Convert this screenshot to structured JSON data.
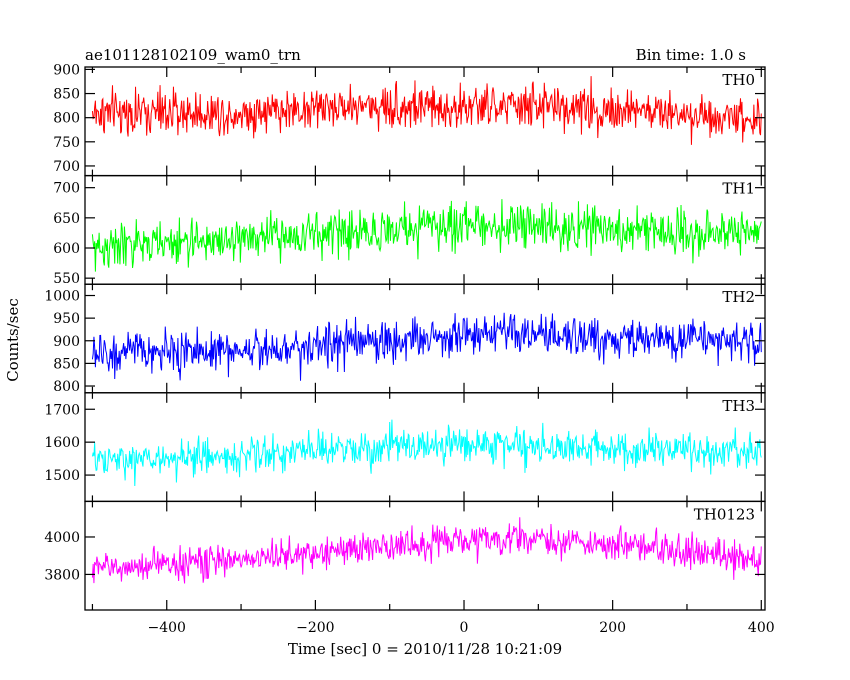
{
  "chart_data": {
    "type": "line",
    "title": "ae101128102109_wam0_trn",
    "bin_time_label": "Bin time: 1.0 s",
    "xlabel": "Time [sec] 0 = 2010/11/28 10:21:09",
    "ylabel": "Counts/sec",
    "xlim": [
      -510,
      405
    ],
    "x_ticks": [
      -400,
      -200,
      0,
      200,
      400
    ],
    "x_tick_labels": [
      "−400",
      "−200",
      "0",
      "200",
      "400"
    ],
    "x_range_data": [
      -500,
      400
    ],
    "panels": [
      {
        "name": "TH0",
        "color": "#ff0000",
        "ylim": [
          680,
          905
        ],
        "y_ticks": [
          700,
          750,
          800,
          850,
          900
        ],
        "y_tick_labels": [
          "700",
          "750",
          "800",
          "850",
          "900"
        ],
        "mean_profile": [
          {
            "x": -500,
            "y": 810
          },
          {
            "x": -300,
            "y": 810
          },
          {
            "x": -150,
            "y": 825
          },
          {
            "x": 0,
            "y": 820
          },
          {
            "x": 100,
            "y": 825
          },
          {
            "x": 250,
            "y": 812
          },
          {
            "x": 400,
            "y": 800
          }
        ],
        "spread": 38
      },
      {
        "name": "TH1",
        "color": "#00ff00",
        "ylim": [
          540,
          720
        ],
        "y_ticks": [
          550,
          600,
          650,
          700
        ],
        "y_tick_labels": [
          "550",
          "600",
          "650",
          "700"
        ],
        "mean_profile": [
          {
            "x": -500,
            "y": 600
          },
          {
            "x": -300,
            "y": 615
          },
          {
            "x": -100,
            "y": 630
          },
          {
            "x": 0,
            "y": 640
          },
          {
            "x": 200,
            "y": 630
          },
          {
            "x": 400,
            "y": 625
          }
        ],
        "spread": 30
      },
      {
        "name": "TH2",
        "color": "#0000ff",
        "ylim": [
          785,
          1025
        ],
        "y_ticks": [
          800,
          850,
          900,
          950,
          1000
        ],
        "y_tick_labels": [
          "800",
          "850",
          "900",
          "950",
          "1000"
        ],
        "mean_profile": [
          {
            "x": -500,
            "y": 870
          },
          {
            "x": -300,
            "y": 880
          },
          {
            "x": -100,
            "y": 900
          },
          {
            "x": 0,
            "y": 915
          },
          {
            "x": 200,
            "y": 905
          },
          {
            "x": 400,
            "y": 900
          }
        ],
        "spread": 38
      },
      {
        "name": "TH3",
        "color": "#00ffff",
        "ylim": [
          1420,
          1750
        ],
        "y_ticks": [
          1500,
          1600,
          1700
        ],
        "y_tick_labels": [
          "1500",
          "1600",
          "1700"
        ],
        "mean_profile": [
          {
            "x": -500,
            "y": 1540
          },
          {
            "x": -300,
            "y": 1560
          },
          {
            "x": -100,
            "y": 1585
          },
          {
            "x": 0,
            "y": 1595
          },
          {
            "x": 200,
            "y": 1580
          },
          {
            "x": 400,
            "y": 1565
          }
        ],
        "spread": 45
      },
      {
        "name": "TH0123",
        "color": "#ff00ff",
        "ylim": [
          3610,
          4190
        ],
        "y_ticks": [
          3800,
          4000
        ],
        "y_tick_labels": [
          "3800",
          "4000"
        ],
        "mean_profile": [
          {
            "x": -500,
            "y": 3830
          },
          {
            "x": -300,
            "y": 3880
          },
          {
            "x": -100,
            "y": 3950
          },
          {
            "x": 0,
            "y": 3985
          },
          {
            "x": 100,
            "y": 3990
          },
          {
            "x": 250,
            "y": 3940
          },
          {
            "x": 400,
            "y": 3880
          }
        ],
        "spread": 70
      }
    ]
  }
}
